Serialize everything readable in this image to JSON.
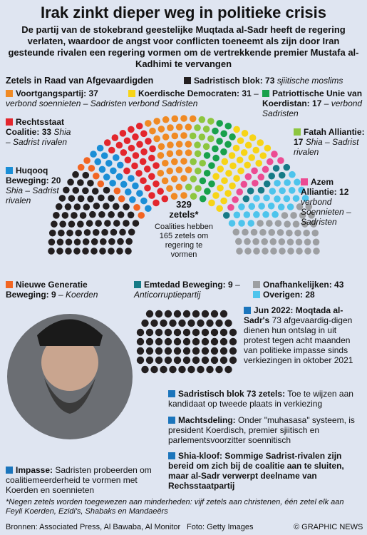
{
  "header": {
    "title": "Irak zinkt dieper weg in politieke crisis",
    "subtitle": "De partij van de stokebrand geestelijke Muqtada al-Sadr heeft de regering verlaten, waardoor de angst voor conflicten toeneemt als zijn door Iran gesteunde rivalen een regering vormen om de vertrekkende premier Mustafa al-Kadhimi te vervangen"
  },
  "chart_data": {
    "type": "parliament",
    "title": "Zetels in Raad van Afgevaardigden",
    "total": 329,
    "total_label": "zetels*",
    "center_note": "Coalities hebben 165 zetels om regering te vormen",
    "series": [
      {
        "name": "Sadristisch blok:",
        "color": "#231f20",
        "values": [
          73
        ],
        "note": "sjiitische moslims"
      },
      {
        "name": "Nieuwe Generatie Beweging:",
        "color": "#f26522",
        "values": [
          9
        ],
        "note": "– Koerden"
      },
      {
        "name": "Huqooq Beweging:",
        "color": "#1b8ed6",
        "values": [
          20
        ],
        "note": "Shia – Sadrist rivalen"
      },
      {
        "name": "Rechtsstaat Coalitie:",
        "color": "#e3262d",
        "values": [
          33
        ],
        "note": "Shia – Sadrist rivalen"
      },
      {
        "name": "Voortgangspartij:",
        "color": "#f08a24",
        "values": [
          37
        ],
        "note": "verbond soennieten – Sadristen"
      },
      {
        "name": "Fatah Alliantie:",
        "color": "#8dc63f",
        "values": [
          17
        ],
        "note": "Shia – Sadrist rivalen"
      },
      {
        "name": "Patriottische Unie van Koerdistan:",
        "color": "#18a14b",
        "values": [
          17
        ],
        "note": "– verbond Sadristen"
      },
      {
        "name": "Koerdische Democraten:",
        "color": "#f7d417",
        "values": [
          31
        ],
        "note": "– verbond Sadristen"
      },
      {
        "name": "Azem Alliantie:",
        "color": "#ec4c93",
        "values": [
          12
        ],
        "note": "verbond Soennieten – Sadristen"
      },
      {
        "name": "Emtedad Beweging:",
        "color": "#167a86",
        "values": [
          9
        ],
        "note": "– Anticorruptiepartij"
      },
      {
        "name": "Overigen:",
        "color": "#4ec4ec",
        "values": [
          28
        ],
        "note": null
      },
      {
        "name": "Onafhankelijken:",
        "color": "#9d9fa2",
        "values": [
          43
        ],
        "note": null
      }
    ]
  },
  "events": [
    {
      "heading": "Jun 2022: Moqtada al-Sadr's",
      "body": "73 afgevaardig-digen dienen hun ontslag in uit protest tegen acht maanden van politieke impasse sinds verkiezingen in oktober 2021"
    },
    {
      "heading": "Sadristisch blok 73 zetels:",
      "body": "Toe te wijzen aan kandidaat op tweede plaats in verkiezing"
    },
    {
      "heading": "Machtsdeling:",
      "body": "Onder \"muhasasa\" systeem, is president Koerdisch, premier sjiitisch en parlementsvoorzitter soennitisch"
    },
    {
      "heading": "Shia-kloof: Sommige Sadrist-rivalen zijn bereid om zich bij de coalitie aan te sluiten, maar al-Sadr verwerpt deelname van Rechsstaatpartij",
      "body": null
    },
    {
      "heading": "Impasse:",
      "body": "Sadristen probeerden om coalitiemeerderheid te vormen met Koerden en soennieten"
    }
  ],
  "footer": {
    "footnote": "*Negen zetels worden toegewezen aan minderheden: vijf zetels aan christenen, één zetel elk aan Feyli Koerden, Ezidi's, Shabaks en Mandaeërs",
    "sources": "Bronnen: Associated Press, Al Bawaba, Al Monitor",
    "photo": "Foto: Getty Images",
    "copyright": "© GRAPHIC NEWS"
  }
}
